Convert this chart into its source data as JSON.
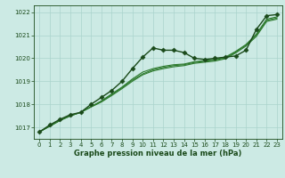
{
  "title": "Graphe pression niveau de la mer (hPa)",
  "bg_color": "#cceae4",
  "grid_color": "#aad4cc",
  "line_color": "#2d7a2d",
  "dark_line_color": "#1a4a1a",
  "xlim": [
    -0.5,
    23.5
  ],
  "ylim": [
    1016.5,
    1022.3
  ],
  "yticks": [
    1017,
    1018,
    1019,
    1020,
    1021,
    1022
  ],
  "xticks": [
    0,
    1,
    2,
    3,
    4,
    5,
    6,
    7,
    8,
    9,
    10,
    11,
    12,
    13,
    14,
    15,
    16,
    17,
    18,
    19,
    20,
    21,
    22,
    23
  ],
  "series": [
    {
      "y": [
        1016.8,
        1017.1,
        1017.35,
        1017.55,
        1017.65,
        1018.0,
        1018.3,
        1018.6,
        1019.0,
        1019.55,
        1020.05,
        1020.45,
        1020.35,
        1020.35,
        1020.25,
        1020.0,
        1019.95,
        1020.0,
        1020.05,
        1020.1,
        1020.35,
        1021.25,
        1021.85,
        1021.9
      ],
      "color": "#1a4a1a",
      "linewidth": 1.0,
      "marker": "D",
      "markersize": 2.5,
      "zorder": 5
    },
    {
      "y": [
        1016.8,
        1017.05,
        1017.3,
        1017.5,
        1017.65,
        1017.9,
        1018.15,
        1018.45,
        1018.75,
        1019.1,
        1019.4,
        1019.55,
        1019.65,
        1019.72,
        1019.75,
        1019.85,
        1019.9,
        1019.95,
        1020.05,
        1020.3,
        1020.6,
        1021.05,
        1021.7,
        1021.8
      ],
      "color": "#2d7a2d",
      "linewidth": 0.8,
      "marker": null,
      "markersize": 0,
      "zorder": 3
    },
    {
      "y": [
        1016.8,
        1017.05,
        1017.3,
        1017.5,
        1017.65,
        1017.9,
        1018.12,
        1018.42,
        1018.72,
        1019.05,
        1019.32,
        1019.5,
        1019.6,
        1019.68,
        1019.72,
        1019.82,
        1019.87,
        1019.92,
        1020.02,
        1020.27,
        1020.57,
        1021.0,
        1021.65,
        1021.75
      ],
      "color": "#2d7a2d",
      "linewidth": 0.8,
      "marker": null,
      "markersize": 0,
      "zorder": 3
    },
    {
      "y": [
        1016.8,
        1017.05,
        1017.3,
        1017.5,
        1017.65,
        1017.88,
        1018.1,
        1018.38,
        1018.68,
        1019.0,
        1019.28,
        1019.45,
        1019.55,
        1019.63,
        1019.68,
        1019.78,
        1019.83,
        1019.88,
        1019.98,
        1020.23,
        1020.53,
        1020.95,
        1021.6,
        1021.7
      ],
      "color": "#2d7a2d",
      "linewidth": 0.8,
      "marker": null,
      "markersize": 0,
      "zorder": 3
    }
  ],
  "xlabel_fontsize": 6.0,
  "tick_fontsize": 5.0,
  "figwidth": 3.2,
  "figheight": 2.0,
  "dpi": 100
}
